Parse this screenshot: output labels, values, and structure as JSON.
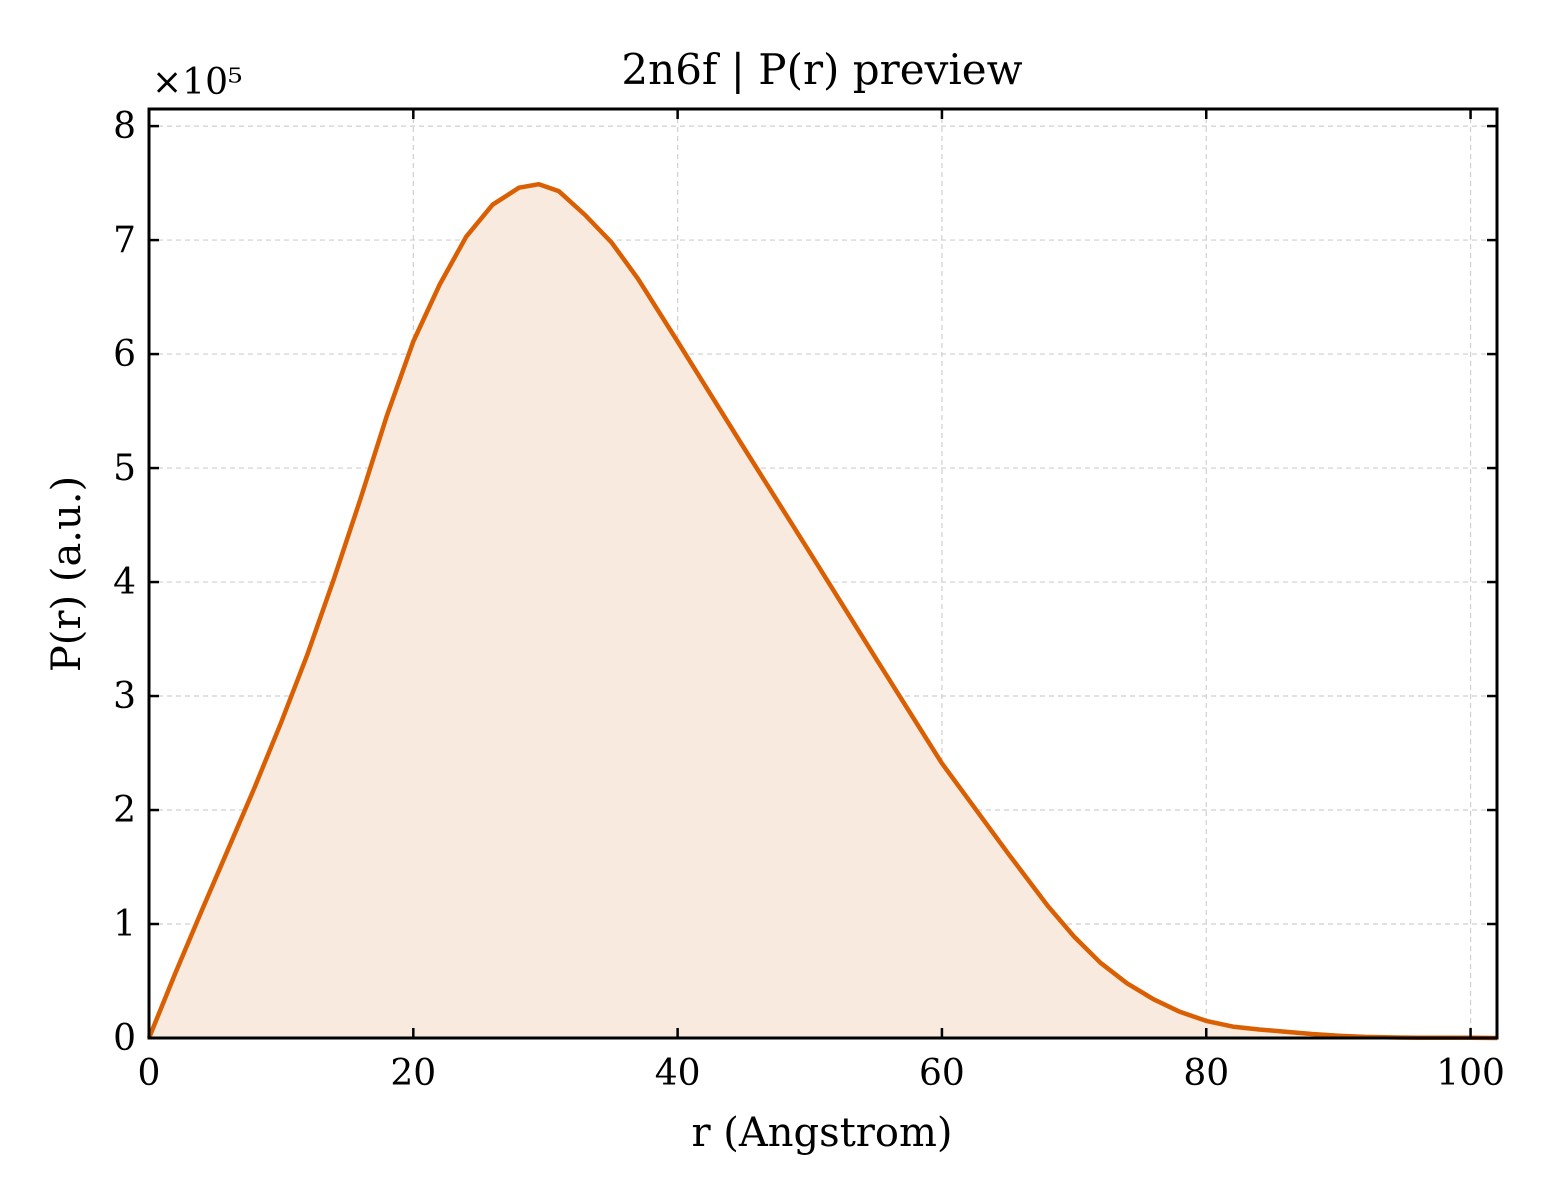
{
  "chart_data": {
    "type": "area",
    "title": "2n6f | P(r) preview",
    "xlabel": "r (Angstrom)",
    "ylabel": "P(r) (a.u.)",
    "y_offset_label": "×10⁵",
    "y_scale": 100000,
    "xlim": [
      0,
      102
    ],
    "ylim": [
      0,
      815000
    ],
    "x_ticks": [
      0,
      20,
      40,
      60,
      80,
      100
    ],
    "y_ticks": [
      0,
      1,
      2,
      3,
      4,
      5,
      6,
      7,
      8
    ],
    "grid": true,
    "line_color": "#d95f02",
    "fill_color": "#f9eadf",
    "series": [
      {
        "x": [
          0,
          2,
          4,
          6,
          8,
          10,
          12,
          14,
          16,
          18,
          20,
          22,
          24,
          26,
          28,
          29.5,
          31,
          33,
          35,
          37,
          40,
          45,
          50,
          55,
          60,
          65,
          68,
          70,
          72,
          74,
          76,
          78,
          80,
          82,
          84,
          86,
          88,
          90,
          92,
          94,
          96,
          98,
          100,
          102
        ],
        "y": [
          0,
          57000,
          112000,
          166000,
          220000,
          277000,
          337000,
          403000,
          473000,
          546000,
          611000,
          661000,
          703000,
          731000,
          746000,
          749000,
          743000,
          722000,
          698000,
          666000,
          611000,
          518000,
          426000,
          333000,
          241000,
          162000,
          116000,
          89000,
          66000,
          48000,
          34000,
          23000,
          15000,
          10000,
          7500,
          5500,
          3500,
          2000,
          1000,
          500,
          300,
          200,
          200,
          0
        ]
      }
    ]
  }
}
